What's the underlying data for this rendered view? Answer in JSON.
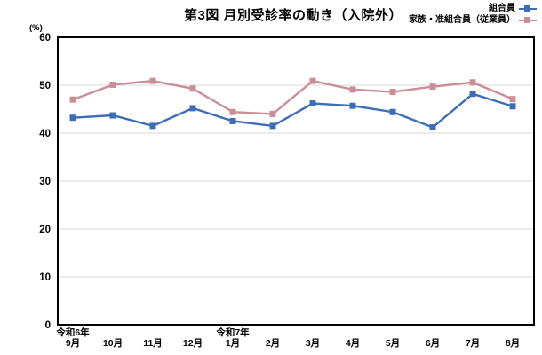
{
  "title": "第3図 月別受診率の動き（入院外）",
  "y_axis_unit": "(%)",
  "colors": {
    "member_blue": "#3d6eb5",
    "family_pink": "#cb8e96",
    "gridline": "#d9d9d9",
    "axis": "#000000"
  },
  "chart_data": {
    "type": "line",
    "title": "第3図 月別受診率の動き（入院外）",
    "ylabel": "(%)",
    "xlabel": "",
    "ylim": [
      0,
      60
    ],
    "yticks": [
      0,
      10,
      20,
      30,
      40,
      50,
      60
    ],
    "grid": true,
    "legend_position": "top-right",
    "categories": [
      "9月",
      "10月",
      "11月",
      "12月",
      "1月",
      "2月",
      "3月",
      "4月",
      "5月",
      "6月",
      "7月",
      "8月"
    ],
    "era_labels": [
      {
        "index": 0,
        "label": "令和6年"
      },
      {
        "index": 4,
        "label": "令和7年"
      }
    ],
    "series": [
      {
        "name": "組合員",
        "color": "#3d6eb5",
        "values": [
          43.2,
          43.7,
          41.5,
          45.2,
          42.5,
          41.5,
          46.2,
          45.7,
          44.4,
          41.2,
          48.2,
          45.6
        ]
      },
      {
        "name": "家族・准組合員（従業員）",
        "color": "#cb8e96",
        "values": [
          47.0,
          50.1,
          50.9,
          49.3,
          44.4,
          44.0,
          50.9,
          49.1,
          48.6,
          49.7,
          50.6,
          47.1
        ]
      }
    ]
  }
}
